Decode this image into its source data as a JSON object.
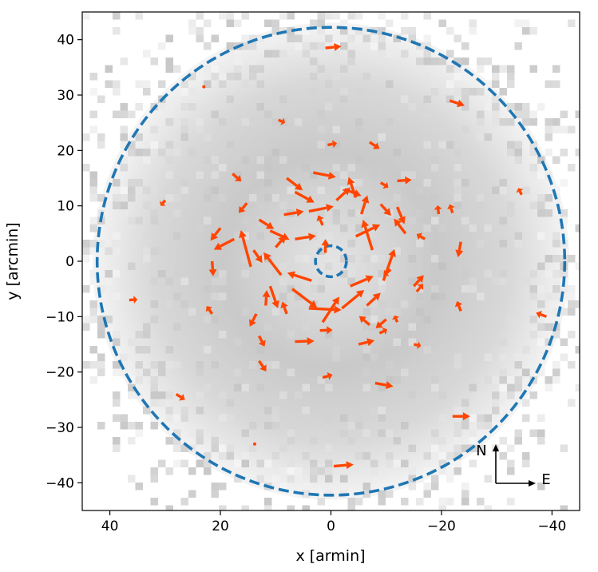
{
  "chart_data": {
    "type": "quiver",
    "title": "",
    "xlabel": "x [armin]",
    "ylabel": "y [arcmin]",
    "xlim": [
      45,
      -45
    ],
    "ylim": [
      -45,
      45
    ],
    "x_inverted": true,
    "xticks": [
      40,
      20,
      0,
      -20,
      -40
    ],
    "xtick_labels": [
      "40",
      "20",
      "0",
      "−20",
      "−40"
    ],
    "yticks": [
      40,
      30,
      20,
      10,
      0,
      -10,
      -20,
      -30,
      -40
    ],
    "ytick_labels": [
      "40",
      "30",
      "20",
      "10",
      "0",
      "−10",
      "−20",
      "−30",
      "−40"
    ],
    "grid": false,
    "background": "grayscale binned density map (Voronoi tessellation)",
    "circles": [
      {
        "center": [
          0,
          0
        ],
        "radius": 42.3,
        "style": "dashed",
        "color": "#1f77b4"
      },
      {
        "center": [
          0,
          0
        ],
        "radius": 2.8,
        "style": "dashed",
        "color": "#1f77b4"
      }
    ],
    "vector_color": "#ff4500",
    "compass": {
      "north_label": "N",
      "east_label": "E",
      "location": "bottom-right"
    },
    "vectors": [
      {
        "x": 1,
        "y": 38.5,
        "u": -2.9,
        "v": 0.3
      },
      {
        "x": -21.5,
        "y": 29,
        "u": -2.7,
        "v": -0.9
      },
      {
        "x": 9.5,
        "y": 25.5,
        "u": -1.2,
        "v": -0.5
      },
      {
        "x": 0.6,
        "y": 21,
        "u": -1.7,
        "v": 0.3
      },
      {
        "x": -7,
        "y": 21.5,
        "u": -1.8,
        "v": -1.2
      },
      {
        "x": 17.8,
        "y": 15.8,
        "u": -1.6,
        "v": -1.4
      },
      {
        "x": 8,
        "y": 15,
        "u": -2.9,
        "v": -2.2
      },
      {
        "x": -9,
        "y": 14.2,
        "u": -1.4,
        "v": -0.9
      },
      {
        "x": -12,
        "y": 14.5,
        "u": -2.6,
        "v": 0.2
      },
      {
        "x": 3.2,
        "y": 16,
        "u": -4.1,
        "v": -0.8
      },
      {
        "x": -2.5,
        "y": 13,
        "u": -3,
        "v": -1.2
      },
      {
        "x": 6.5,
        "y": 12.5,
        "u": -3.5,
        "v": -1.9
      },
      {
        "x": 30,
        "y": 11,
        "u": 0.8,
        "v": -1
      },
      {
        "x": 15.2,
        "y": 10.5,
        "u": 1.5,
        "v": -1.8
      },
      {
        "x": -9,
        "y": 10.3,
        "u": -1.9,
        "v": -2.1
      },
      {
        "x": -12,
        "y": 9.8,
        "u": -1.3,
        "v": -3.1
      },
      {
        "x": -34.5,
        "y": 12,
        "u": 0.6,
        "v": 1.2
      },
      {
        "x": -19.5,
        "y": 8.5,
        "u": 0.2,
        "v": 1.6
      },
      {
        "x": -22,
        "y": 8.7,
        "u": 0.5,
        "v": 1.6
      },
      {
        "x": 4,
        "y": 9,
        "u": -4.5,
        "v": 0.9
      },
      {
        "x": 8.5,
        "y": 8.4,
        "u": -3.6,
        "v": 0.6
      },
      {
        "x": -1,
        "y": 11,
        "u": -2.5,
        "v": 2.3
      },
      {
        "x": -5.5,
        "y": 8.5,
        "u": -1.1,
        "v": 3.4
      },
      {
        "x": -4.5,
        "y": 11.5,
        "u": 1.3,
        "v": 3.7
      },
      {
        "x": 13,
        "y": 7.5,
        "u": -2.7,
        "v": -1.7
      },
      {
        "x": 20,
        "y": 6,
        "u": 1.8,
        "v": -2.3
      },
      {
        "x": 17.5,
        "y": 4,
        "u": 3.7,
        "v": -1.9
      },
      {
        "x": 11,
        "y": 5.5,
        "u": -3.5,
        "v": -1.6
      },
      {
        "x": 6.5,
        "y": 4,
        "u": -3.8,
        "v": 0.6
      },
      {
        "x": 1.5,
        "y": 6.5,
        "u": 0.8,
        "v": 1.8
      },
      {
        "x": -4.5,
        "y": 4.5,
        "u": -4.4,
        "v": 2.1
      },
      {
        "x": -7.5,
        "y": 2,
        "u": 1.7,
        "v": 5.5
      },
      {
        "x": -13.5,
        "y": 5,
        "u": 2.1,
        "v": 2.7
      },
      {
        "x": -17,
        "y": 4,
        "u": 1.5,
        "v": 0.9
      },
      {
        "x": -23.5,
        "y": 3.5,
        "u": 0.5,
        "v": -2.8
      },
      {
        "x": 14,
        "y": 2,
        "u": -1.6,
        "v": -2.3
      },
      {
        "x": 10,
        "y": 2.5,
        "u": -1.8,
        "v": 2.1
      },
      {
        "x": 1,
        "y": 1.5,
        "u": 0,
        "v": 2.5
      },
      {
        "x": -10.8,
        "y": -1.5,
        "u": 1.3,
        "v": -1.1
      },
      {
        "x": -9.5,
        "y": -3.5,
        "u": -2,
        "v": 5.7
      },
      {
        "x": -15,
        "y": -4.5,
        "u": -1.8,
        "v": 2
      },
      {
        "x": 21.5,
        "y": 0,
        "u": -0.2,
        "v": -2.7
      },
      {
        "x": 14.5,
        "y": -1,
        "u": 1.8,
        "v": 6.6
      },
      {
        "x": 9,
        "y": -2.5,
        "u": 3.2,
        "v": 4.1
      },
      {
        "x": 3.5,
        "y": -3.5,
        "u": 4.4,
        "v": 1.4
      },
      {
        "x": -3.5,
        "y": -4.5,
        "u": -4.2,
        "v": 1.8
      },
      {
        "x": 7,
        "y": -5,
        "u": -4.5,
        "v": -3.4
      },
      {
        "x": 11,
        "y": -4.5,
        "u": -1.4,
        "v": -4
      },
      {
        "x": 36.5,
        "y": -7,
        "u": -1.5,
        "v": 0.1
      },
      {
        "x": 11.8,
        "y": -8,
        "u": -0.2,
        "v": 2.8
      },
      {
        "x": 8,
        "y": -9.5,
        "u": 0.8,
        "v": 2.2
      },
      {
        "x": 4,
        "y": -8.5,
        "u": -5.9,
        "v": -0.3
      },
      {
        "x": 1.5,
        "y": -11,
        "u": -3,
        "v": 4.6
      },
      {
        "x": -2,
        "y": -8.5,
        "u": -4,
        "v": 3.3
      },
      {
        "x": -6.5,
        "y": -8,
        "u": -2.5,
        "v": 2.3
      },
      {
        "x": 21.5,
        "y": -9.5,
        "u": 1,
        "v": 1.4
      },
      {
        "x": 13.5,
        "y": -9.5,
        "u": 1.2,
        "v": -2.3
      },
      {
        "x": -15.5,
        "y": -5.5,
        "u": -1.2,
        "v": 1.4
      },
      {
        "x": -23.5,
        "y": -9,
        "u": 0.7,
        "v": 1.8
      },
      {
        "x": -39,
        "y": -10,
        "u": 1.9,
        "v": 0.7
      },
      {
        "x": 2,
        "y": -12.5,
        "u": -2.3,
        "v": 0.1
      },
      {
        "x": -7,
        "y": -11.5,
        "u": 1.9,
        "v": 1.6
      },
      {
        "x": -10,
        "y": -10.5,
        "u": 1.9,
        "v": -1.6
      },
      {
        "x": 13,
        "y": -13.5,
        "u": -1,
        "v": -1.9
      },
      {
        "x": 6.5,
        "y": -14.5,
        "u": -3.5,
        "v": 0.1
      },
      {
        "x": -5,
        "y": -15,
        "u": -2.9,
        "v": 0.7
      },
      {
        "x": -15,
        "y": -15,
        "u": -1.3,
        "v": -0.3
      },
      {
        "x": -8.8,
        "y": -13,
        "u": -1.4,
        "v": 0.7
      },
      {
        "x": -12,
        "y": -11,
        "u": 0.5,
        "v": 1.2
      },
      {
        "x": 13,
        "y": -18,
        "u": -1.3,
        "v": -1.9
      },
      {
        "x": 1.5,
        "y": -21,
        "u": -1.8,
        "v": 0.5
      },
      {
        "x": -8,
        "y": -22,
        "u": -3.3,
        "v": -0.6
      },
      {
        "x": 28,
        "y": -24,
        "u": -1.6,
        "v": -1
      },
      {
        "x": -22,
        "y": -28,
        "u": -3.2,
        "v": 0
      },
      {
        "x": -0.5,
        "y": -37,
        "u": -3.6,
        "v": 0.3
      },
      {
        "x": 23,
        "y": 31.5,
        "u": -0.2,
        "v": 0
      },
      {
        "x": 13.8,
        "y": -33,
        "u": -0.2,
        "v": 0
      }
    ]
  }
}
